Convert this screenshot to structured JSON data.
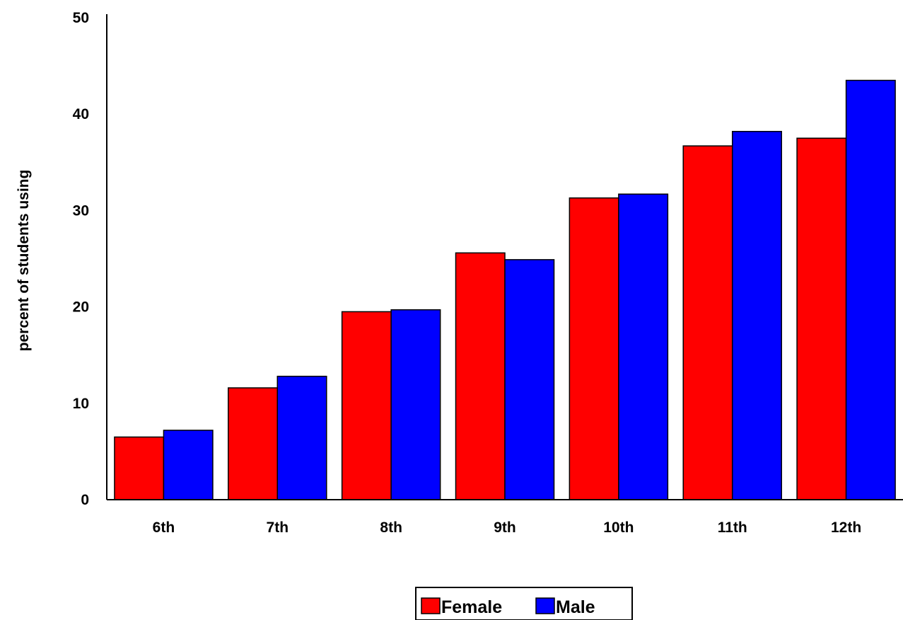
{
  "chart_data": {
    "type": "bar",
    "title": "",
    "xlabel": "",
    "ylabel": "percent of students using",
    "ylim": [
      0,
      50
    ],
    "yticks": [
      0,
      10,
      20,
      30,
      40,
      50
    ],
    "grid": false,
    "legend_position": "bottom-center",
    "categories": [
      "6th",
      "7th",
      "8th",
      "9th",
      "10th",
      "11th",
      "12th"
    ],
    "series": [
      {
        "name": "Female",
        "color": "#ff0000",
        "values": [
          6.5,
          11.6,
          19.5,
          25.6,
          31.3,
          36.7,
          37.5
        ]
      },
      {
        "name": "Male",
        "color": "#0000ff",
        "values": [
          7.2,
          12.8,
          19.7,
          24.9,
          31.7,
          38.2,
          43.5
        ]
      }
    ]
  }
}
